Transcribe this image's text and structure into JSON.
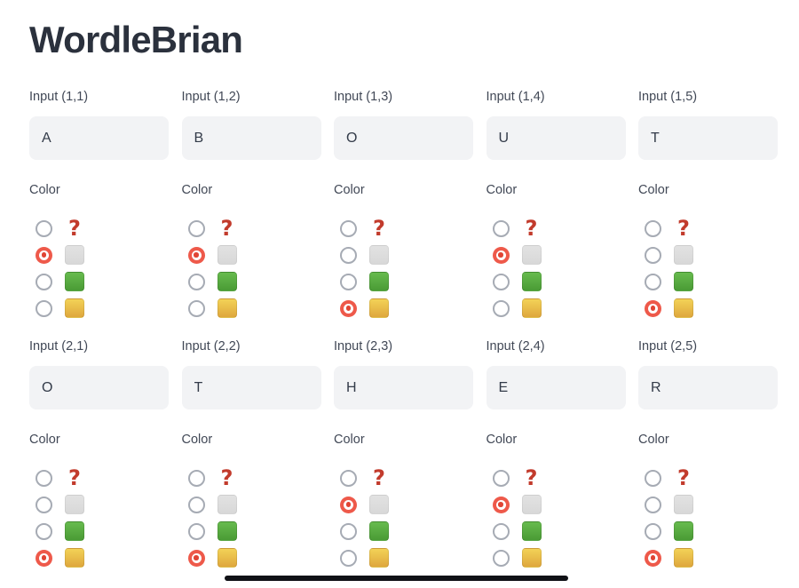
{
  "title": "WordleBrian",
  "colors": {
    "accent_radio": "#ee594a",
    "question_red": "#c23b2c",
    "swatch_gray": "#dddddd",
    "swatch_green": "#55aa3f",
    "swatch_yellow": "#eabf4a",
    "input_background": "#f2f3f5"
  },
  "color_options": [
    {
      "name": "unknown",
      "icon": "question-mark-icon",
      "glyph": "?"
    },
    {
      "name": "gray",
      "icon": "gray-square-icon"
    },
    {
      "name": "green",
      "icon": "green-square-icon"
    },
    {
      "name": "yellow",
      "icon": "yellow-square-icon"
    }
  ],
  "grid": {
    "cells": [
      {
        "label": "Input (1,1)",
        "value": "A",
        "color_label": "Color",
        "selected": "gray",
        "selected_index": 1
      },
      {
        "label": "Input (1,2)",
        "value": "B",
        "color_label": "Color",
        "selected": "gray",
        "selected_index": 1
      },
      {
        "label": "Input (1,3)",
        "value": "O",
        "color_label": "Color",
        "selected": "yellow",
        "selected_index": 3
      },
      {
        "label": "Input (1,4)",
        "value": "U",
        "color_label": "Color",
        "selected": "gray",
        "selected_index": 1
      },
      {
        "label": "Input (1,5)",
        "value": "T",
        "color_label": "Color",
        "selected": "yellow",
        "selected_index": 3
      },
      {
        "label": "Input (2,1)",
        "value": "O",
        "color_label": "Color",
        "selected": "yellow",
        "selected_index": 3
      },
      {
        "label": "Input (2,2)",
        "value": "T",
        "color_label": "Color",
        "selected": "yellow",
        "selected_index": 3
      },
      {
        "label": "Input (2,3)",
        "value": "H",
        "color_label": "Color",
        "selected": "gray",
        "selected_index": 1
      },
      {
        "label": "Input (2,4)",
        "value": "E",
        "color_label": "Color",
        "selected": "gray",
        "selected_index": 1
      },
      {
        "label": "Input (2,5)",
        "value": "R",
        "color_label": "Color",
        "selected": "yellow",
        "selected_index": 3
      }
    ]
  }
}
